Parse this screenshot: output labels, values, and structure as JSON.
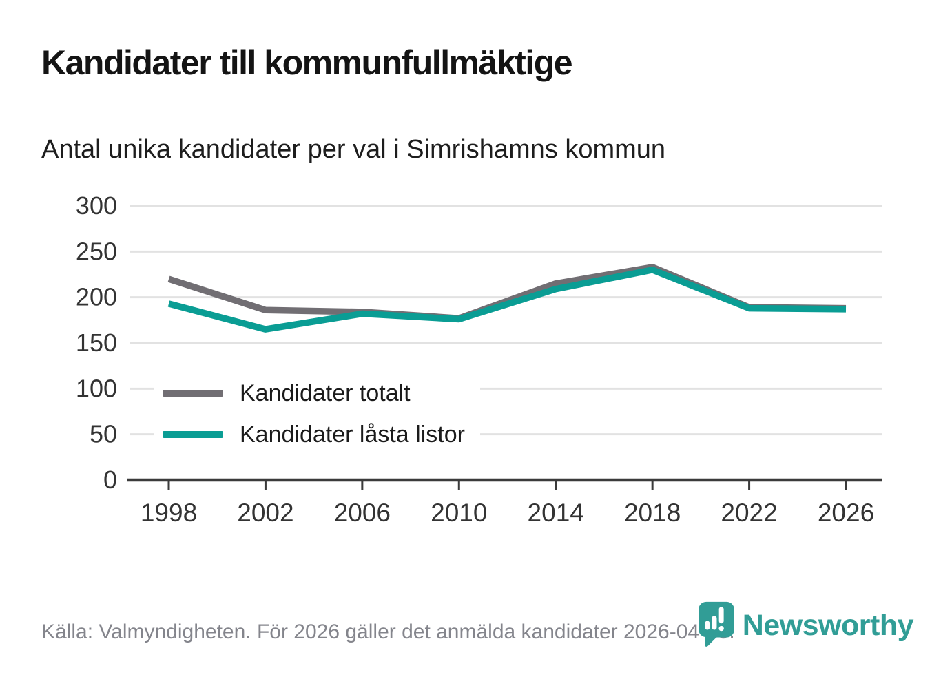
{
  "header": {
    "title": "Kandidater till kommunfullmäktige",
    "subtitle": "Antal unika kandidater per val i Simrishamns kommun"
  },
  "chart_data": {
    "type": "line",
    "categories": [
      "1998",
      "2002",
      "2006",
      "2010",
      "2014",
      "2018",
      "2022",
      "2026"
    ],
    "series": [
      {
        "name": "Kandidater totalt",
        "color": "#716e73",
        "values": [
          220,
          186,
          184,
          177,
          215,
          233,
          189,
          188
        ]
      },
      {
        "name": "Kandidater låsta listor",
        "color": "#0a9d94",
        "values": [
          193,
          165,
          182,
          176,
          209,
          230,
          188,
          187
        ]
      }
    ],
    "title": "Kandidater till kommunfullmäktige",
    "subtitle": "Antal unika kandidater per val i Simrishamns kommun",
    "xlabel": "",
    "ylabel": "",
    "ylim": [
      0,
      300
    ],
    "yticks": [
      0,
      50,
      100,
      150,
      200,
      250,
      300
    ],
    "grid": "horizontal",
    "legend_position": "inside-left"
  },
  "footer": {
    "source": "Källa: Valmyndigheten. För 2026 gäller det anmälda kandidater 2026-04-10.",
    "brand": "Newsworthy"
  },
  "colors": {
    "line_gray": "#716e73",
    "line_teal": "#0a9d94",
    "brand_teal": "#319d96",
    "grid": "#e2e2e2",
    "axis": "#3b3b3b",
    "tick_text": "#333333",
    "source_text": "#84858c"
  }
}
